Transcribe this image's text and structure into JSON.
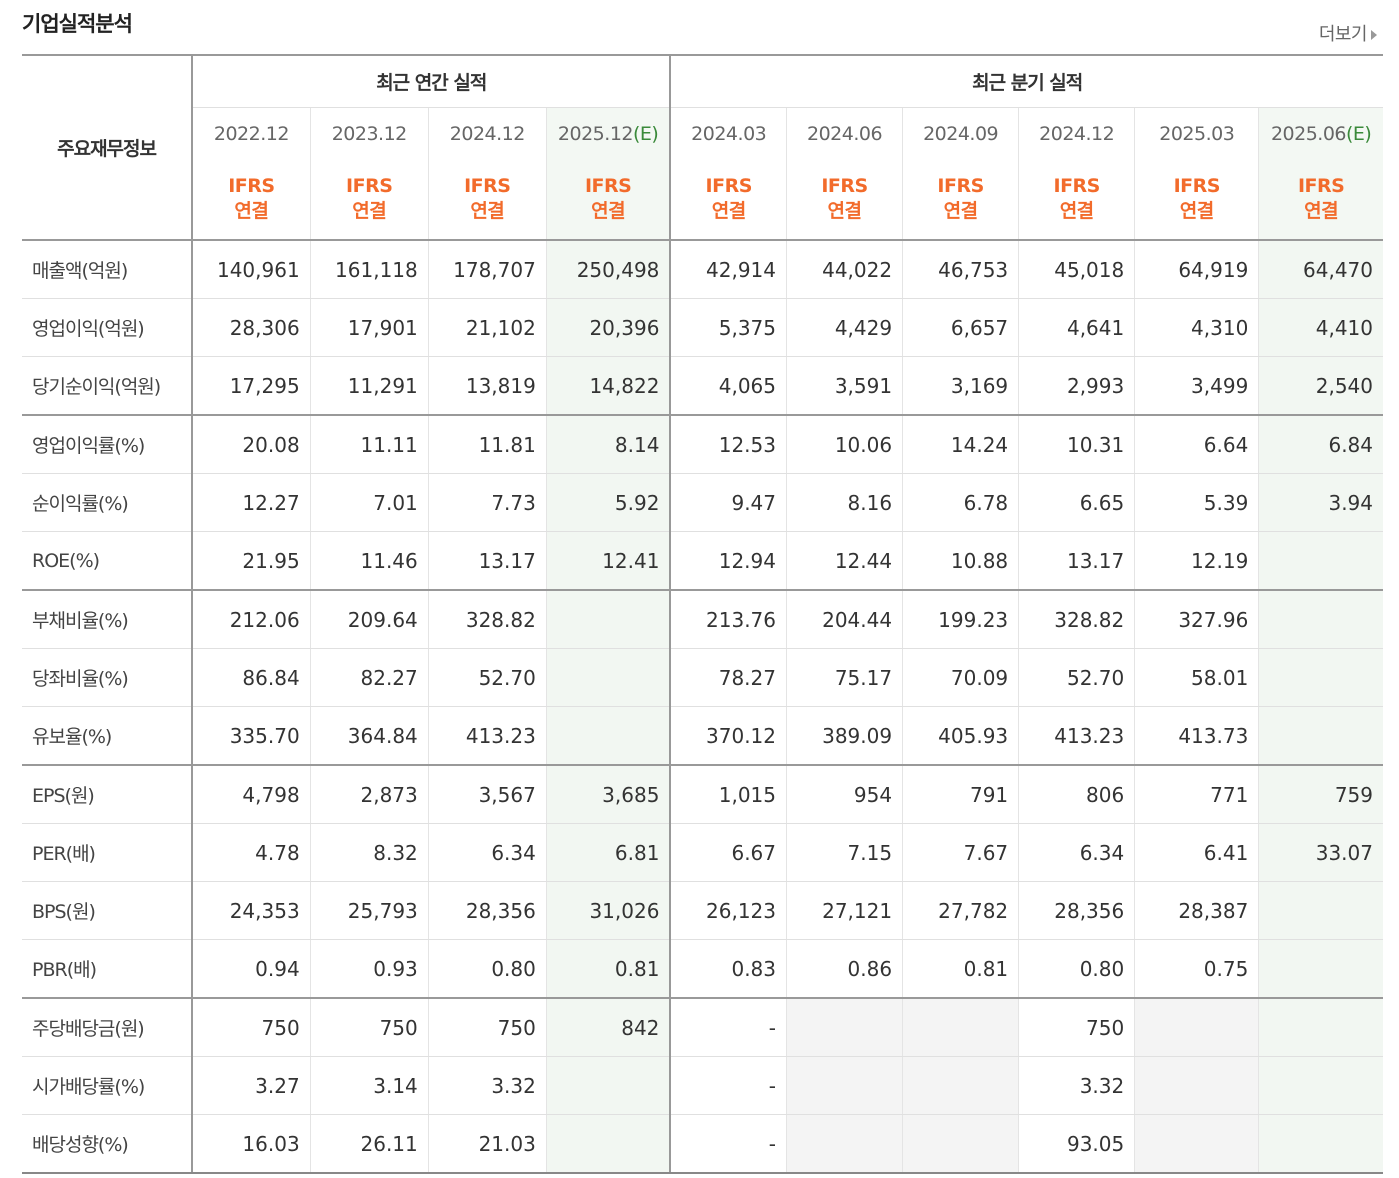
{
  "header": {
    "title": "기업실적분석",
    "more_label": "더보기"
  },
  "table": {
    "row_header": "주요재무정보",
    "group_annual": "최근 연간 실적",
    "group_quarter": "최근 분기 실적",
    "periods": [
      {
        "base": "2022.12",
        "est": ""
      },
      {
        "base": "2023.12",
        "est": ""
      },
      {
        "base": "2024.12",
        "est": ""
      },
      {
        "base": "2025.12",
        "est": "(E)"
      },
      {
        "base": "2024.03",
        "est": ""
      },
      {
        "base": "2024.06",
        "est": ""
      },
      {
        "base": "2024.09",
        "est": ""
      },
      {
        "base": "2024.12",
        "est": ""
      },
      {
        "base": "2025.03",
        "est": ""
      },
      {
        "base": "2025.06",
        "est": "(E)"
      }
    ],
    "basis_line1": "IFRS",
    "basis_line2": "연결",
    "rows": [
      {
        "label": "매출액(억원)",
        "values": [
          "140,961",
          "161,118",
          "178,707",
          "250,498",
          "42,914",
          "44,022",
          "46,753",
          "45,018",
          "64,919",
          "64,470"
        ]
      },
      {
        "label": "영업이익(억원)",
        "values": [
          "28,306",
          "17,901",
          "21,102",
          "20,396",
          "5,375",
          "4,429",
          "6,657",
          "4,641",
          "4,310",
          "4,410"
        ]
      },
      {
        "label": "당기순이익(억원)",
        "values": [
          "17,295",
          "11,291",
          "13,819",
          "14,822",
          "4,065",
          "3,591",
          "3,169",
          "2,993",
          "3,499",
          "2,540"
        ]
      },
      {
        "label": "영업이익률(%)",
        "values": [
          "20.08",
          "11.11",
          "11.81",
          "8.14",
          "12.53",
          "10.06",
          "14.24",
          "10.31",
          "6.64",
          "6.84"
        ]
      },
      {
        "label": "순이익률(%)",
        "values": [
          "12.27",
          "7.01",
          "7.73",
          "5.92",
          "9.47",
          "8.16",
          "6.78",
          "6.65",
          "5.39",
          "3.94"
        ]
      },
      {
        "label": "ROE(%)",
        "values": [
          "21.95",
          "11.46",
          "13.17",
          "12.41",
          "12.94",
          "12.44",
          "10.88",
          "13.17",
          "12.19",
          ""
        ]
      },
      {
        "label": "부채비율(%)",
        "values": [
          "212.06",
          "209.64",
          "328.82",
          "",
          "213.76",
          "204.44",
          "199.23",
          "328.82",
          "327.96",
          ""
        ]
      },
      {
        "label": "당좌비율(%)",
        "values": [
          "86.84",
          "82.27",
          "52.70",
          "",
          "78.27",
          "75.17",
          "70.09",
          "52.70",
          "58.01",
          ""
        ]
      },
      {
        "label": "유보율(%)",
        "values": [
          "335.70",
          "364.84",
          "413.23",
          "",
          "370.12",
          "389.09",
          "405.93",
          "413.23",
          "413.73",
          ""
        ]
      },
      {
        "label": "EPS(원)",
        "values": [
          "4,798",
          "2,873",
          "3,567",
          "3,685",
          "1,015",
          "954",
          "791",
          "806",
          "771",
          "759"
        ]
      },
      {
        "label": "PER(배)",
        "values": [
          "4.78",
          "8.32",
          "6.34",
          "6.81",
          "6.67",
          "7.15",
          "7.67",
          "6.34",
          "6.41",
          "33.07"
        ]
      },
      {
        "label": "BPS(원)",
        "values": [
          "24,353",
          "25,793",
          "28,356",
          "31,026",
          "26,123",
          "27,121",
          "27,782",
          "28,356",
          "28,387",
          ""
        ]
      },
      {
        "label": "PBR(배)",
        "values": [
          "0.94",
          "0.93",
          "0.80",
          "0.81",
          "0.83",
          "0.86",
          "0.81",
          "0.80",
          "0.75",
          ""
        ]
      },
      {
        "label": "주당배당금(원)",
        "values": [
          "750",
          "750",
          "750",
          "842",
          "-",
          "",
          "",
          "750",
          "",
          ""
        ]
      },
      {
        "label": "시가배당률(%)",
        "values": [
          "3.27",
          "3.14",
          "3.32",
          "",
          "-",
          "",
          "",
          "3.32",
          "",
          ""
        ]
      },
      {
        "label": "배당성향(%)",
        "values": [
          "16.03",
          "26.11",
          "21.03",
          "",
          "-",
          "",
          "",
          "93.05",
          "",
          ""
        ]
      }
    ]
  }
}
